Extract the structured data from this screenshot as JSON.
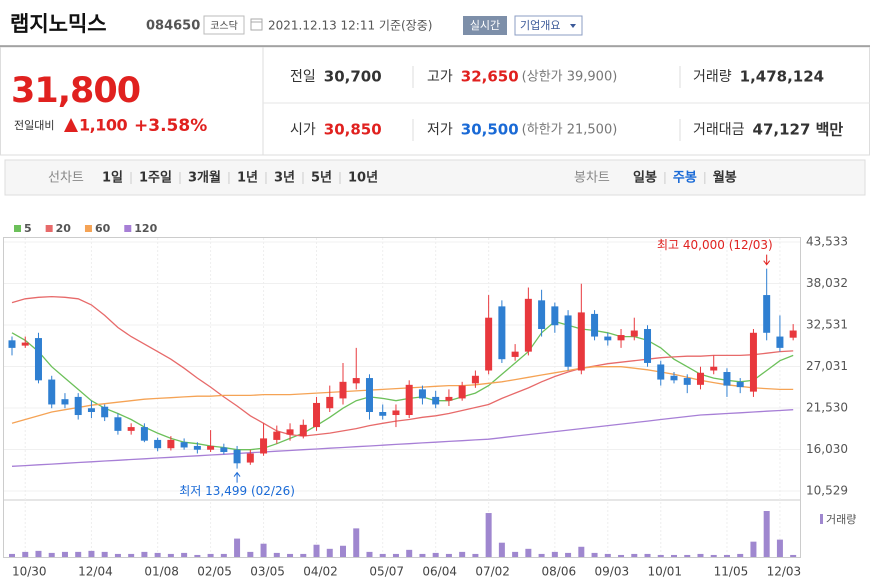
{
  "header": {
    "name": "랩지노믹스",
    "code": "084650",
    "market": "코스닥",
    "timestamp": "2021.12.13 12:11 기준(장중)",
    "realtime": "실시간",
    "company_info": "기업개요"
  },
  "quote": {
    "price": "31,800",
    "change_label": "전일대비",
    "change": "1,100",
    "change_pct": "+3.58%",
    "color": "#e0211f"
  },
  "stats": [
    {
      "label": "전일",
      "value": "30,700",
      "color": "#333333"
    },
    {
      "label": "고가",
      "value": "32,650",
      "note": "(상한가 39,900)",
      "color": "#e0211f"
    },
    {
      "label": "거래량",
      "value": "1,478,124",
      "color": "#333333"
    },
    {
      "label": "시가",
      "value": "30,850",
      "color": "#e0211f"
    },
    {
      "label": "저가",
      "value": "30,500",
      "note": "(하한가 21,500)",
      "color": "#1a6ad6"
    },
    {
      "label": "거래대금",
      "value": "47,127 백만",
      "color": "#333333"
    }
  ],
  "tabs": {
    "line_label": "선차트",
    "line": [
      "1일",
      "1주일",
      "3개월",
      "1년",
      "3년",
      "5년",
      "10년"
    ],
    "candle_label": "봉차트",
    "candle": [
      "일봉",
      "주봉",
      "월봉"
    ],
    "active": 1
  },
  "chart_data": {
    "type": "candlestick",
    "categories": [
      null,
      "10/30",
      null,
      null,
      null,
      null,
      "12/04",
      null,
      null,
      null,
      null,
      "01/08",
      null,
      null,
      null,
      "02/05",
      null,
      null,
      null,
      "03/05",
      null,
      null,
      null,
      "04/02",
      null,
      null,
      null,
      null,
      "05/07",
      null,
      null,
      null,
      "06/04",
      null,
      null,
      null,
      "07/02",
      null,
      null,
      null,
      null,
      "08/06",
      null,
      null,
      null,
      "09/03",
      null,
      null,
      null,
      "10/01",
      null,
      null,
      null,
      null,
      "11/05",
      null,
      null,
      null,
      "12/03",
      null
    ],
    "open": [
      30500,
      29800,
      30800,
      25300,
      22700,
      23000,
      21500,
      21700,
      20300,
      18500,
      19000,
      17300,
      16200,
      17000,
      16500,
      16000,
      16300,
      16000,
      14300,
      15500,
      17300,
      18000,
      17800,
      19000,
      21500,
      22800,
      24800,
      25500,
      21000,
      20600,
      20600,
      24000,
      23000,
      22500,
      22800,
      24800,
      26500,
      35000,
      28300,
      29000,
      35800,
      35000,
      33800,
      26500,
      34000,
      31000,
      30500,
      31000,
      32000,
      27300,
      25800,
      25500,
      24600,
      26500,
      26300,
      25000,
      23700,
      36500,
      31000,
      30850
    ],
    "high": [
      31000,
      31000,
      31500,
      25800,
      23500,
      23500,
      22500,
      22000,
      20800,
      19500,
      19500,
      17600,
      17800,
      17500,
      17000,
      18600,
      16800,
      16500,
      16000,
      19500,
      19200,
      19500,
      20000,
      23000,
      24500,
      27500,
      29500,
      26000,
      22000,
      22000,
      25200,
      24500,
      23800,
      24000,
      25000,
      26500,
      36500,
      35800,
      30000,
      37500,
      37200,
      35500,
      34500,
      38000,
      34500,
      31500,
      32000,
      33500,
      32500,
      27800,
      26300,
      26000,
      27000,
      28500,
      26800,
      25500,
      32000,
      40000,
      33800,
      32650
    ],
    "low": [
      28500,
      29500,
      24800,
      21500,
      21500,
      20000,
      20200,
      19800,
      18000,
      18000,
      17000,
      15800,
      15900,
      16000,
      15500,
      15700,
      15400,
      13499,
      14000,
      15200,
      16800,
      17200,
      17500,
      18500,
      21000,
      22000,
      24000,
      20000,
      20000,
      19000,
      20200,
      22000,
      21500,
      21800,
      22500,
      24200,
      26000,
      27500,
      27800,
      28500,
      31000,
      31500,
      26500,
      26000,
      30500,
      29800,
      29500,
      30500,
      27000,
      24500,
      24800,
      23500,
      24000,
      26000,
      23000,
      23500,
      23000,
      30500,
      29000,
      30500
    ],
    "close": [
      29500,
      30200,
      25200,
      22000,
      22000,
      20600,
      21000,
      20300,
      18500,
      19000,
      17200,
      16200,
      17300,
      16300,
      16000,
      16500,
      15700,
      14200,
      15500,
      17500,
      18400,
      18700,
      19300,
      22200,
      23000,
      25000,
      25500,
      21000,
      20500,
      21200,
      24600,
      22800,
      22000,
      23000,
      24500,
      25800,
      33500,
      28000,
      29000,
      36000,
      32000,
      32500,
      27000,
      34200,
      31000,
      30500,
      31200,
      31800,
      27500,
      25300,
      25200,
      24600,
      26200,
      27000,
      24500,
      24300,
      31500,
      31500,
      29500,
      31800
    ],
    "up_color": "#e8383d",
    "down_color": "#2f7fd1",
    "series": [
      {
        "name": "5",
        "color": "#6cc05a",
        "values": [
          31500,
          30500,
          29000,
          27000,
          25500,
          24000,
          22500,
          21500,
          20800,
          20000,
          19000,
          18200,
          17500,
          17000,
          16800,
          16500,
          16300,
          16000,
          16000,
          16200,
          16800,
          17500,
          18200,
          19200,
          20300,
          21500,
          22500,
          23000,
          22800,
          22500,
          22800,
          23000,
          22500,
          22500,
          23000,
          23500,
          24500,
          26000,
          27500,
          29000,
          31500,
          33000,
          32500,
          32000,
          31800,
          31500,
          31000,
          31000,
          30500,
          29500,
          28000,
          27000,
          26000,
          25500,
          25200,
          25000,
          25200,
          26500,
          27800,
          28500
        ]
      },
      {
        "name": "20",
        "color": "#e76a6a",
        "values": [
          35500,
          36000,
          36200,
          36300,
          36200,
          36000,
          35200,
          33800,
          32200,
          31000,
          30000,
          29000,
          28000,
          26800,
          25500,
          24300,
          23000,
          21800,
          20500,
          19500,
          18500,
          18000,
          17800,
          18000,
          18200,
          18500,
          18800,
          19200,
          19500,
          19800,
          20000,
          20300,
          20500,
          20800,
          21200,
          21600,
          22000,
          22800,
          23500,
          24200,
          25000,
          25700,
          26300,
          26800,
          27100,
          27400,
          27600,
          27800,
          28000,
          28200,
          28300,
          28400,
          28400,
          28500,
          28500,
          28500,
          28600,
          28800,
          29000,
          29100
        ]
      },
      {
        "name": "60",
        "color": "#f5a355",
        "values": [
          19500,
          20000,
          20500,
          21000,
          21300,
          21600,
          21900,
          22100,
          22300,
          22500,
          22700,
          22800,
          22900,
          23000,
          23100,
          23100,
          23200,
          23200,
          23200,
          23300,
          23300,
          23300,
          23400,
          23500,
          23600,
          23700,
          23800,
          23900,
          24000,
          24100,
          24200,
          24300,
          24400,
          24500,
          24500,
          24600,
          24800,
          25000,
          25300,
          25600,
          25900,
          26200,
          26500,
          26800,
          27000,
          27000,
          27000,
          26800,
          26600,
          26300,
          26000,
          25600,
          25200,
          24900,
          24600,
          24400,
          24200,
          24100,
          24000,
          24000
        ]
      },
      {
        "name": "120",
        "color": "#a77fd6",
        "values": [
          13800,
          13900,
          14000,
          14100,
          14200,
          14300,
          14400,
          14500,
          14600,
          14700,
          14800,
          14900,
          15000,
          15100,
          15200,
          15300,
          15400,
          15500,
          15600,
          15700,
          15800,
          15900,
          16000,
          16100,
          16200,
          16300,
          16400,
          16500,
          16600,
          16700,
          16800,
          16900,
          17000,
          17100,
          17200,
          17300,
          17400,
          17600,
          17800,
          18000,
          18200,
          18400,
          18600,
          18800,
          19000,
          19200,
          19400,
          19600,
          19800,
          20000,
          20200,
          20400,
          20600,
          20700,
          20800,
          20900,
          21000,
          21100,
          21200,
          21300
        ]
      }
    ],
    "volume": {
      "name": "거래량",
      "color": "#9f87cf",
      "values": [
        600000,
        1000000,
        1200000,
        800000,
        1000000,
        1000000,
        1200000,
        1000000,
        600000,
        600000,
        1000000,
        800000,
        600000,
        800000,
        400000,
        600000,
        600000,
        3600000,
        1000000,
        2600000,
        800000,
        600000,
        600000,
        2400000,
        1600000,
        2200000,
        5600000,
        1000000,
        600000,
        600000,
        1400000,
        600000,
        800000,
        600000,
        1000000,
        600000,
        8600000,
        2800000,
        1000000,
        1600000,
        600000,
        1000000,
        800000,
        2000000,
        800000,
        600000,
        400000,
        600000,
        600000,
        400000,
        400000,
        400000,
        600000,
        400000,
        400000,
        600000,
        3000000,
        9000000,
        3400000,
        400000
      ]
    },
    "ylim": [
      10529,
      43533
    ],
    "yticks": [
      {
        "value": 10529,
        "label": "10,529"
      },
      {
        "value": 16030,
        "label": "16,030"
      },
      {
        "value": 21530,
        "label": "21,530"
      },
      {
        "value": 27031,
        "label": "27,031"
      },
      {
        "value": 32531,
        "label": "32,531"
      },
      {
        "value": 38032,
        "label": "38,032"
      },
      {
        "value": 43533,
        "label": "43,533"
      }
    ],
    "grid": true,
    "annotations": [
      {
        "text": "최고 40,000 (12/03)",
        "index": 57,
        "value": 40000,
        "color": "#e0211f"
      },
      {
        "text": "최저 13,499 (02/26)",
        "index": 17,
        "value": 13499,
        "color": "#1a6ad6"
      }
    ]
  }
}
